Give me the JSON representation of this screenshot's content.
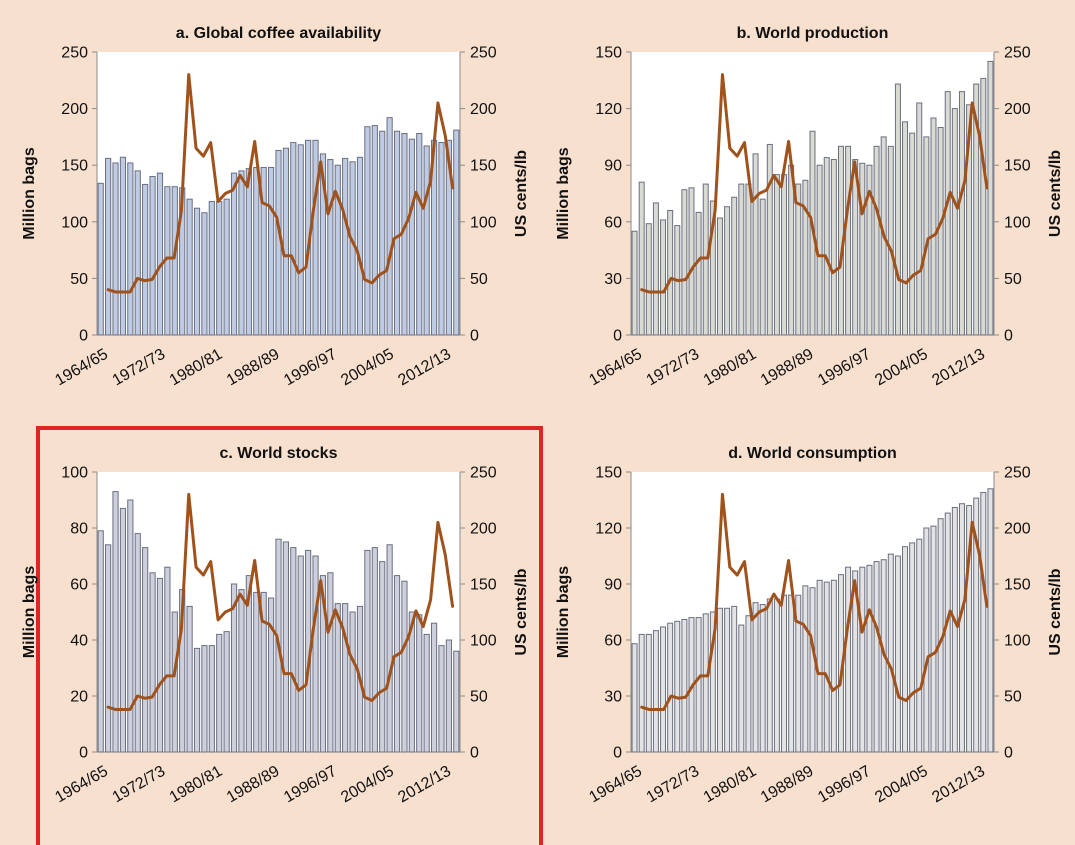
{
  "price_axis_label": "US cents/lb",
  "quantity_axis_label": "Million bags",
  "colors": {
    "background": "#f8e0cf",
    "plot_background": "#ffffff",
    "price_line": "#a0521c",
    "highlight": "#e02424"
  },
  "chart_data": [
    {
      "type": "bar",
      "panel": "a",
      "title": "a. Global coffee availability",
      "ylabel": "Million bags",
      "ylabel_right": "US cents/lb",
      "ylim": [
        0,
        250
      ],
      "yticks": [
        "0",
        "50",
        "100",
        "150",
        "200",
        "250"
      ],
      "ylim_right": [
        0,
        250
      ],
      "yticks_right": [
        "0",
        "50",
        "100",
        "150",
        "200",
        "250"
      ],
      "xtick_labels": [
        "1964/65",
        "1972/73",
        "1980/81",
        "1988/89",
        "1996/97",
        "2004/05",
        "2012/13"
      ],
      "bar_color": "#bfcbe2",
      "series": [
        {
          "name": "Availability (million bags)",
          "values": [
            134,
            156,
            152,
            157,
            152,
            145,
            133,
            140,
            143,
            131,
            131,
            130,
            120,
            112,
            108,
            118,
            118,
            120,
            143,
            145,
            147,
            148,
            148,
            148,
            163,
            165,
            170,
            168,
            172,
            172,
            160,
            155,
            150,
            156,
            153,
            157,
            184,
            185,
            180,
            192,
            180,
            178,
            173,
            178,
            167,
            172,
            170,
            172,
            181
          ]
        },
        {
          "name": "Price (US cents/lb)",
          "values": [
            40,
            38,
            38,
            38,
            50,
            48,
            49,
            60,
            68,
            68,
            110,
            230,
            165,
            158,
            170,
            118,
            125,
            128,
            141,
            131,
            171,
            117,
            114,
            104,
            70,
            70,
            55,
            60,
            110,
            153,
            107,
            127,
            111,
            87,
            74,
            49,
            46,
            53,
            57,
            85,
            89,
            103,
            126,
            112,
            136,
            205,
            176,
            130
          ]
        }
      ]
    },
    {
      "type": "bar",
      "panel": "b",
      "title": "b. World production",
      "ylabel": "Million bags",
      "ylabel_right": "US cents/lb",
      "ylim": [
        0,
        150
      ],
      "yticks": [
        "0",
        "30",
        "60",
        "90",
        "120",
        "150"
      ],
      "ylim_right": [
        0,
        250
      ],
      "yticks_right": [
        "0",
        "50",
        "100",
        "150",
        "200",
        "250"
      ],
      "xtick_labels": [
        "1964/65",
        "1972/73",
        "1980/81",
        "1988/89",
        "1996/97",
        "2004/05",
        "2012/13"
      ],
      "bar_color": "#d9dbd2",
      "series": [
        {
          "name": "Production (million bags)",
          "values": [
            55,
            81,
            59,
            70,
            61,
            66,
            58,
            77,
            78,
            65,
            80,
            71,
            62,
            68,
            73,
            80,
            80,
            96,
            72,
            101,
            85,
            85,
            90,
            80,
            82,
            108,
            90,
            94,
            93,
            100,
            100,
            93,
            91,
            90,
            100,
            105,
            100,
            133,
            113,
            107,
            123,
            105,
            115,
            110,
            129,
            120,
            129,
            122,
            133,
            136,
            145
          ]
        },
        {
          "name": "Price (US cents/lb)",
          "values": [
            40,
            38,
            38,
            38,
            50,
            48,
            49,
            60,
            68,
            68,
            110,
            230,
            165,
            158,
            170,
            118,
            125,
            128,
            141,
            131,
            171,
            117,
            114,
            104,
            70,
            70,
            55,
            60,
            110,
            153,
            107,
            127,
            111,
            87,
            74,
            49,
            46,
            53,
            57,
            85,
            89,
            103,
            126,
            112,
            136,
            205,
            176,
            130
          ]
        }
      ]
    },
    {
      "type": "bar",
      "panel": "c",
      "title": "c. World stocks",
      "ylabel": "Million bags",
      "ylabel_right": "US cents/lb",
      "ylim": [
        0,
        100
      ],
      "yticks": [
        "0",
        "20",
        "40",
        "60",
        "80",
        "100"
      ],
      "ylim_right": [
        0,
        250
      ],
      "yticks_right": [
        "0",
        "50",
        "100",
        "150",
        "200",
        "250"
      ],
      "xtick_labels": [
        "1964/65",
        "1972/73",
        "1980/81",
        "1988/89",
        "1996/97",
        "2004/05",
        "2012/13"
      ],
      "bar_color": "#cdd0dc",
      "highlighted": true,
      "series": [
        {
          "name": "Stocks (million bags)",
          "values": [
            79,
            74,
            93,
            87,
            90,
            78,
            73,
            64,
            62,
            66,
            50,
            58,
            52,
            37,
            38,
            38,
            42,
            43,
            60,
            58,
            63,
            57,
            57,
            55,
            76,
            75,
            73,
            70,
            72,
            70,
            63,
            64,
            53,
            53,
            50,
            52,
            72,
            73,
            68,
            74,
            63,
            61,
            50,
            49,
            42,
            46,
            38,
            40,
            36
          ]
        },
        {
          "name": "Price (US cents/lb)",
          "values": [
            40,
            38,
            38,
            38,
            50,
            48,
            49,
            60,
            68,
            68,
            110,
            230,
            165,
            158,
            170,
            118,
            125,
            128,
            141,
            131,
            171,
            117,
            114,
            104,
            70,
            70,
            55,
            60,
            110,
            153,
            107,
            127,
            111,
            87,
            74,
            49,
            46,
            53,
            57,
            85,
            89,
            103,
            126,
            112,
            136,
            205,
            176,
            130
          ]
        }
      ]
    },
    {
      "type": "bar",
      "panel": "d",
      "title": "d. World consumption",
      "ylabel": "Million bags",
      "ylabel_right": "US cents/lb",
      "ylim": [
        0,
        150
      ],
      "yticks": [
        "0",
        "30",
        "60",
        "90",
        "120",
        "150"
      ],
      "ylim_right": [
        0,
        250
      ],
      "yticks_right": [
        "0",
        "50",
        "100",
        "150",
        "200",
        "250"
      ],
      "xtick_labels": [
        "1964/65",
        "1972/73",
        "1980/81",
        "1988/89",
        "1996/97",
        "2004/05",
        "2012/13"
      ],
      "bar_color": "#e3e3e3",
      "series": [
        {
          "name": "Consumption (million bags)",
          "values": [
            58,
            63,
            63,
            65,
            67,
            69,
            70,
            71,
            72,
            72,
            74,
            75,
            77,
            77,
            78,
            68,
            73,
            80,
            79,
            82,
            82,
            84,
            84,
            84,
            89,
            88,
            92,
            91,
            92,
            95,
            99,
            97,
            99,
            100,
            102,
            103,
            106,
            105,
            110,
            112,
            114,
            120,
            121,
            125,
            128,
            131,
            133,
            132,
            136,
            139,
            141
          ]
        },
        {
          "name": "Price (US cents/lb)",
          "values": [
            40,
            38,
            38,
            38,
            50,
            48,
            49,
            60,
            68,
            68,
            110,
            230,
            165,
            158,
            170,
            118,
            125,
            128,
            141,
            131,
            171,
            117,
            114,
            104,
            70,
            70,
            55,
            60,
            110,
            153,
            107,
            127,
            111,
            87,
            74,
            49,
            46,
            53,
            57,
            85,
            89,
            103,
            126,
            112,
            136,
            205,
            176,
            130
          ]
        }
      ]
    }
  ]
}
